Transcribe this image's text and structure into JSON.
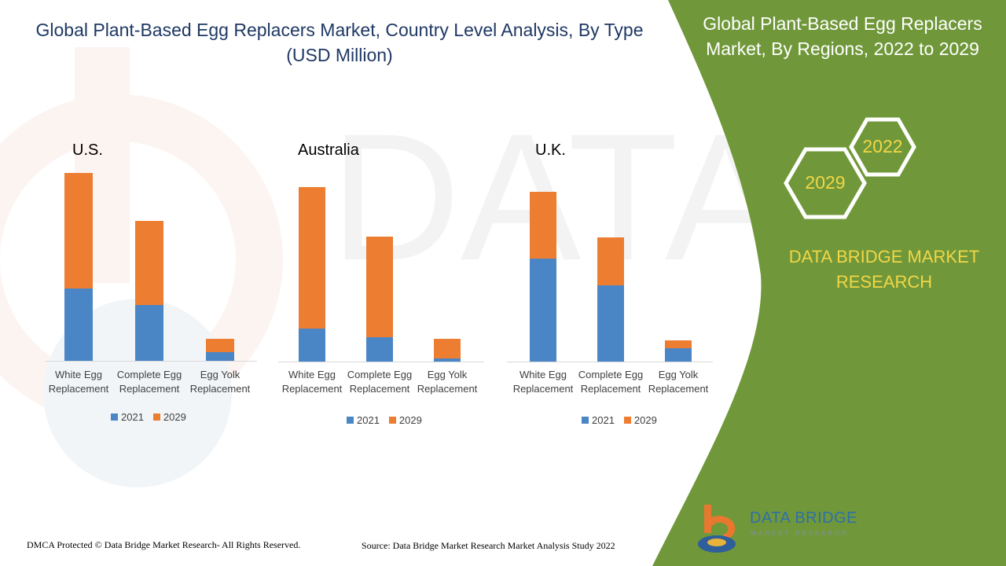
{
  "title": "Global Plant-Based Egg Replacers Market, Country Level Analysis, By Type (USD Million)",
  "right_panel": {
    "title": "Global Plant-Based Egg Replacers Market, By Regions, 2022 to 2029",
    "hex_year_1": "2022",
    "hex_year_2": "2029",
    "brand_line_1": "DATA BRIDGE MARKET",
    "brand_line_2": "RESEARCH"
  },
  "footer": {
    "copyright": "DMCA Protected © Data Bridge Market Research- All Rights Reserved.",
    "source": "Source: Data Bridge Market Research Market Analysis Study 2022"
  },
  "logo": {
    "name": "DATA BRIDGE",
    "tagline": "MARKET RESEARCH"
  },
  "colors": {
    "series_2021": "#4a86c6",
    "series_2029": "#ed7d31",
    "panel_green": "#70983a",
    "accent_yellow": "#f2d646",
    "title_blue": "#1f3864"
  },
  "chart_data": [
    {
      "type": "bar",
      "stacked": true,
      "title": "U.S.",
      "categories": [
        "White Egg Replacement",
        "Complete Egg Replacement",
        "Egg Yolk Replacement"
      ],
      "category_lines": [
        [
          "White Egg",
          "Replacement"
        ],
        [
          "Complete Egg",
          "Replacement"
        ],
        [
          "Egg Yolk",
          "Replacement"
        ]
      ],
      "series": [
        {
          "name": "2021",
          "values": [
            92,
            71,
            11
          ]
        },
        {
          "name": "2029",
          "values": [
            147,
            107,
            17
          ]
        }
      ],
      "ylim": [
        0,
        250
      ]
    },
    {
      "type": "bar",
      "stacked": true,
      "title": "Australia",
      "categories": [
        "White Egg Replacement",
        "Complete Egg Replacement",
        "Egg Yolk Replacement"
      ],
      "category_lines": [
        [
          "White Egg",
          "Replacement"
        ],
        [
          "Complete Egg",
          "Replacement"
        ],
        [
          "Egg Yolk",
          "Replacement"
        ]
      ],
      "series": [
        {
          "name": "2021",
          "values": [
            42,
            31,
            4
          ]
        },
        {
          "name": "2029",
          "values": [
            180,
            128,
            25
          ]
        }
      ],
      "ylim": [
        0,
        250
      ]
    },
    {
      "type": "bar",
      "stacked": true,
      "title": "U.K.",
      "categories": [
        "White Egg Replacement",
        "Complete Egg Replacement",
        "Egg Yolk Replacement"
      ],
      "category_lines": [
        [
          "White Egg",
          "Replacement"
        ],
        [
          "Complete Egg",
          "Replacement"
        ],
        [
          "Egg Yolk",
          "Replacement"
        ]
      ],
      "series": [
        {
          "name": "2021",
          "values": [
            131,
            97,
            17
          ]
        },
        {
          "name": "2029",
          "values": [
            85,
            61,
            10
          ]
        }
      ],
      "ylim": [
        0,
        250
      ]
    }
  ]
}
